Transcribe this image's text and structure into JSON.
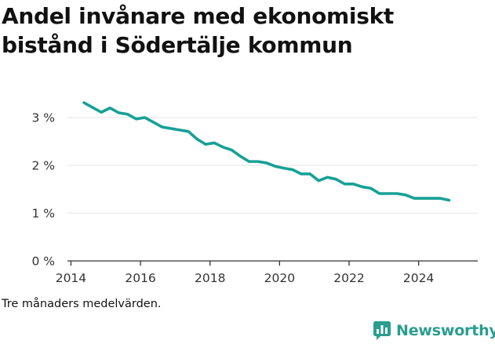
{
  "title": "Andel invånare med ekonomiskt bistånd i Södertälje kommun",
  "footnote": "Tre månaders medelvärden.",
  "brand": {
    "name": "Newsworthy",
    "icon": "bar-chart-speech-bubble-icon",
    "color": "#2a9d8f"
  },
  "colors": {
    "line": "#17a096",
    "grid": "#e3e3e3",
    "axis": "#333333",
    "text": "#111111"
  },
  "chart_data": {
    "type": "line",
    "title": "Andel invånare med ekonomiskt bistånd i Södertälje kommun",
    "xlim": [
      2013.9,
      2025.7
    ],
    "ylim": [
      0,
      3.5
    ],
    "x_ticks": [
      2014,
      2016,
      2018,
      2020,
      2022,
      2024
    ],
    "x_tick_labels": [
      "2014",
      "2016",
      "2018",
      "2020",
      "2022",
      "2024"
    ],
    "y_ticks": [
      0,
      1,
      2,
      3
    ],
    "y_tick_labels": [
      "0 %",
      "1 %",
      "2 %",
      "3 %"
    ],
    "grid": "horizontal",
    "series": [
      {
        "x": [
          "2014-05",
          "2014-08",
          "2014-11",
          "2015-02",
          "2015-05",
          "2015-08",
          "2015-11",
          "2016-02",
          "2016-05",
          "2016-08",
          "2016-11",
          "2017-02",
          "2017-05",
          "2017-08",
          "2017-11",
          "2018-02",
          "2018-05",
          "2018-08",
          "2018-11",
          "2019-02",
          "2019-05",
          "2019-08",
          "2019-11",
          "2020-02",
          "2020-05",
          "2020-08",
          "2020-11",
          "2021-02",
          "2021-05",
          "2021-08",
          "2021-11",
          "2022-02",
          "2022-05",
          "2022-08",
          "2022-11",
          "2023-02",
          "2023-05",
          "2023-08",
          "2023-11",
          "2024-02",
          "2024-05",
          "2024-08",
          "2024-11"
        ],
        "y": [
          3.31,
          3.21,
          3.11,
          3.2,
          3.1,
          3.07,
          2.97,
          3.0,
          2.9,
          2.8,
          2.77,
          2.74,
          2.71,
          2.55,
          2.44,
          2.47,
          2.38,
          2.32,
          2.19,
          2.08,
          2.08,
          2.05,
          1.98,
          1.94,
          1.91,
          1.82,
          1.82,
          1.68,
          1.75,
          1.71,
          1.61,
          1.61,
          1.55,
          1.52,
          1.41,
          1.41,
          1.41,
          1.38,
          1.31,
          1.31,
          1.31,
          1.31,
          1.27
        ]
      }
    ]
  }
}
